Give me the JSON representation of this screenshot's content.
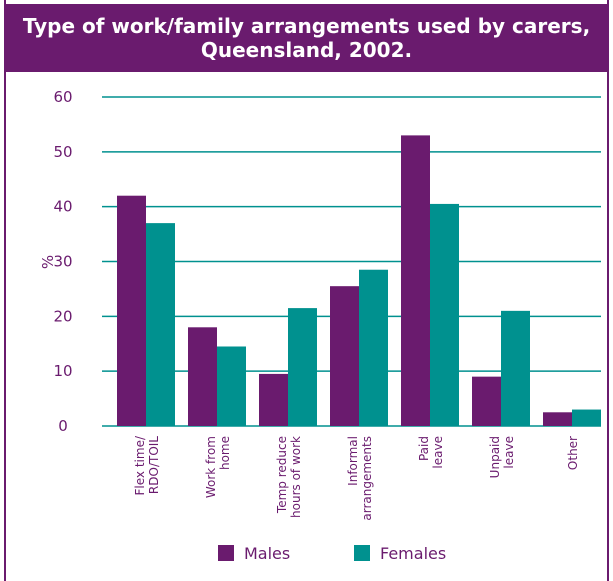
{
  "chart_data": {
    "type": "bar",
    "title": "Type of work/family arrangements used by carers,",
    "title_line2": "Queensland, 2002.",
    "xlabel": "",
    "ylabel": "%",
    "ylim": [
      0,
      60
    ],
    "yticks": [
      "0",
      "10",
      "20",
      "30",
      "40",
      "50",
      "60"
    ],
    "grid": true,
    "legend_position": "bottom",
    "categories": [
      [
        "Flex time/",
        "RDO/TOIL"
      ],
      [
        "Work from",
        "home"
      ],
      [
        "Temp reduce",
        "hours of work"
      ],
      [
        "Informal",
        "arrangements"
      ],
      [
        "Paid",
        "leave"
      ],
      [
        "Unpaid",
        "leave"
      ],
      [
        "Other"
      ]
    ],
    "series": [
      {
        "name": "Males",
        "color": "#6a1b6e",
        "values": [
          42,
          18,
          9.5,
          25.5,
          53,
          9,
          2.5
        ]
      },
      {
        "name": "Females",
        "color": "#00918f",
        "values": [
          37,
          14.5,
          21.5,
          28.5,
          40.5,
          21,
          3
        ]
      }
    ],
    "colors": {
      "frame": "#6a1b6e",
      "grid": "#00918f",
      "tick_text": "#6a1b6e"
    }
  }
}
